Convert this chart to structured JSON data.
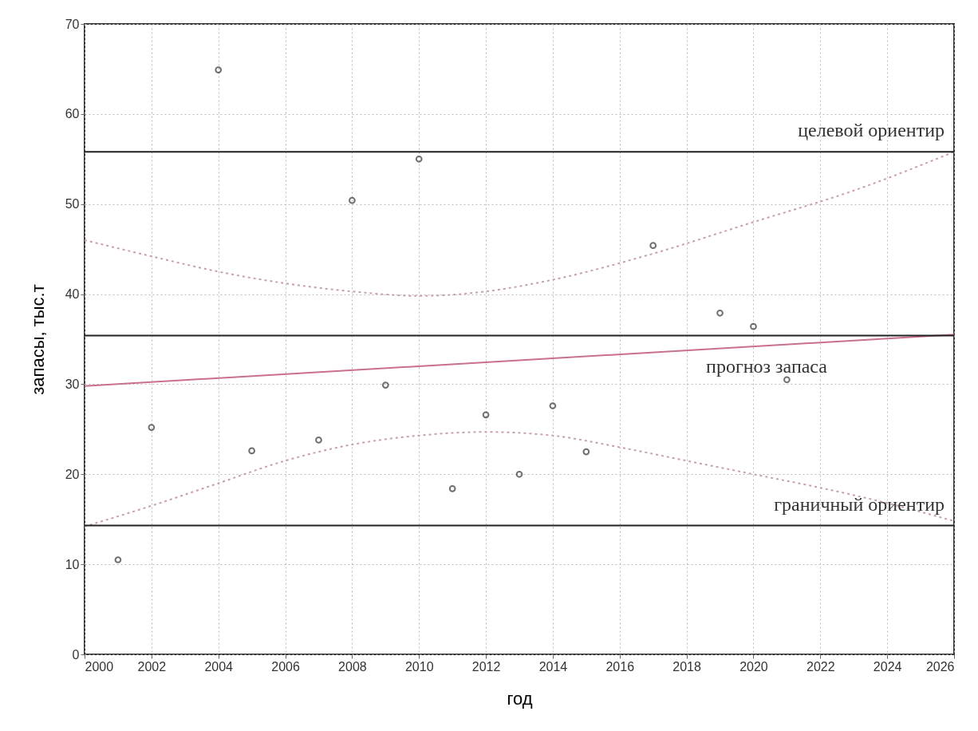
{
  "chart_data": {
    "type": "scatter",
    "xlabel": "год",
    "ylabel": "запасы, тыс.т",
    "xlim": [
      2000,
      2026
    ],
    "ylim": [
      0,
      70
    ],
    "xticks": [
      2000,
      2002,
      2004,
      2006,
      2008,
      2010,
      2012,
      2014,
      2016,
      2018,
      2020,
      2022,
      2024,
      2026
    ],
    "yticks": [
      0,
      10,
      20,
      30,
      40,
      50,
      60,
      70
    ],
    "grid": true,
    "series": [
      {
        "marker": "circle",
        "color": "#333333",
        "x": [
          2001,
          2002,
          2004,
          2005,
          2007,
          2008,
          2009,
          2010,
          2011,
          2012,
          2013,
          2014,
          2015,
          2017,
          2019,
          2020,
          2021
        ],
        "values": [
          10.5,
          25.2,
          64.9,
          22.6,
          23.8,
          50.4,
          29.9,
          55.0,
          18.4,
          26.6,
          20.0,
          27.6,
          22.5,
          45.4,
          37.9,
          36.4,
          30.5
        ]
      },
      {
        "type": "line",
        "color": "#c9708a",
        "line_style": "solid",
        "x": [
          2000,
          2026
        ],
        "values": [
          29.8,
          35.5
        ]
      },
      {
        "type": "line",
        "color": "#c8a0a8",
        "line_style": "dotted",
        "x": [
          2000,
          2002,
          2004,
          2006,
          2008,
          2010,
          2012,
          2014,
          2017,
          2020,
          2023,
          2026
        ],
        "values": [
          46,
          44.2,
          42.5,
          41.2,
          40.3,
          39.8,
          40.3,
          41.6,
          44.5,
          48,
          51.5,
          55.8
        ]
      },
      {
        "type": "line",
        "color": "#c8a0a8",
        "line_style": "dotted",
        "x": [
          2000,
          2002,
          2004,
          2006,
          2008,
          2010,
          2012,
          2014,
          2016,
          2018,
          2020,
          2022,
          2024,
          2026
        ],
        "values": [
          14.2,
          16.5,
          19,
          21.5,
          23.3,
          24.3,
          24.7,
          24.3,
          23,
          21.5,
          20,
          18.5,
          16.8,
          14.8
        ]
      }
    ],
    "ref_lines": [
      {
        "axis": "y",
        "value": 55.8,
        "label": "целевой ориентир",
        "color": "#222222"
      },
      {
        "axis": "y",
        "value": 35.4,
        "color": "#222222"
      },
      {
        "axis": "y",
        "value": 14.3,
        "label": "граничный ориентир",
        "color": "#222222"
      }
    ],
    "annotations": [
      "прогноз запаса"
    ]
  }
}
